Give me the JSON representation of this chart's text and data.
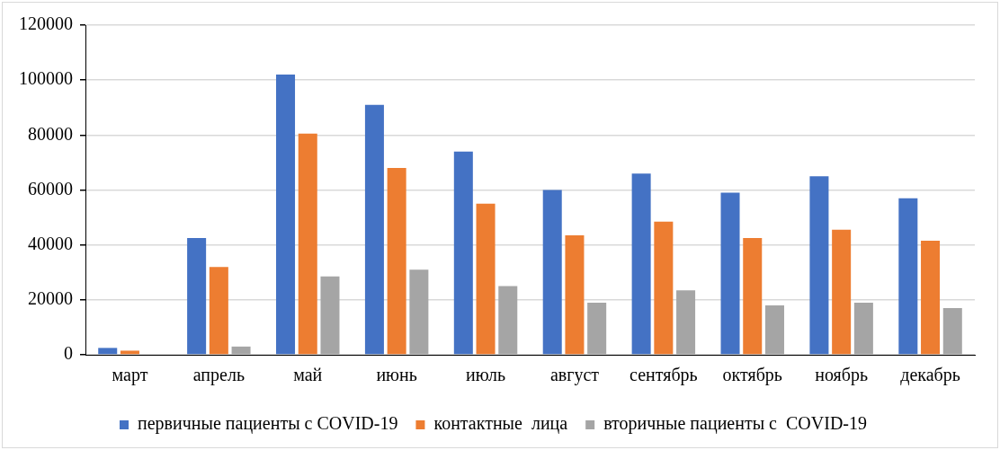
{
  "chart_data": {
    "type": "bar",
    "categories": [
      "март",
      "апрель",
      "май",
      "июнь",
      "июль",
      "август",
      "сентябрь",
      "октябрь",
      "ноябрь",
      "декабрь"
    ],
    "series": [
      {
        "name": "первичные пациенты с COVID-19",
        "color": "#4472c4",
        "values": [
          2500,
          42500,
          102000,
          91000,
          74000,
          60000,
          66000,
          59000,
          65000,
          57000
        ]
      },
      {
        "name": "контактные  лица",
        "color": "#ed7d31",
        "values": [
          1500,
          32000,
          80500,
          68000,
          55000,
          43500,
          48500,
          42500,
          45500,
          41500
        ]
      },
      {
        "name": "вторичные пациенты с  COVID-19",
        "color": "#a5a5a5",
        "values": [
          0,
          3000,
          28500,
          31000,
          25000,
          19000,
          23500,
          18000,
          19000,
          17000
        ]
      }
    ],
    "ylim": [
      0,
      120000
    ],
    "yticks": [
      0,
      20000,
      40000,
      60000,
      80000,
      100000,
      120000
    ],
    "grid": "y",
    "legend": "bottom"
  }
}
